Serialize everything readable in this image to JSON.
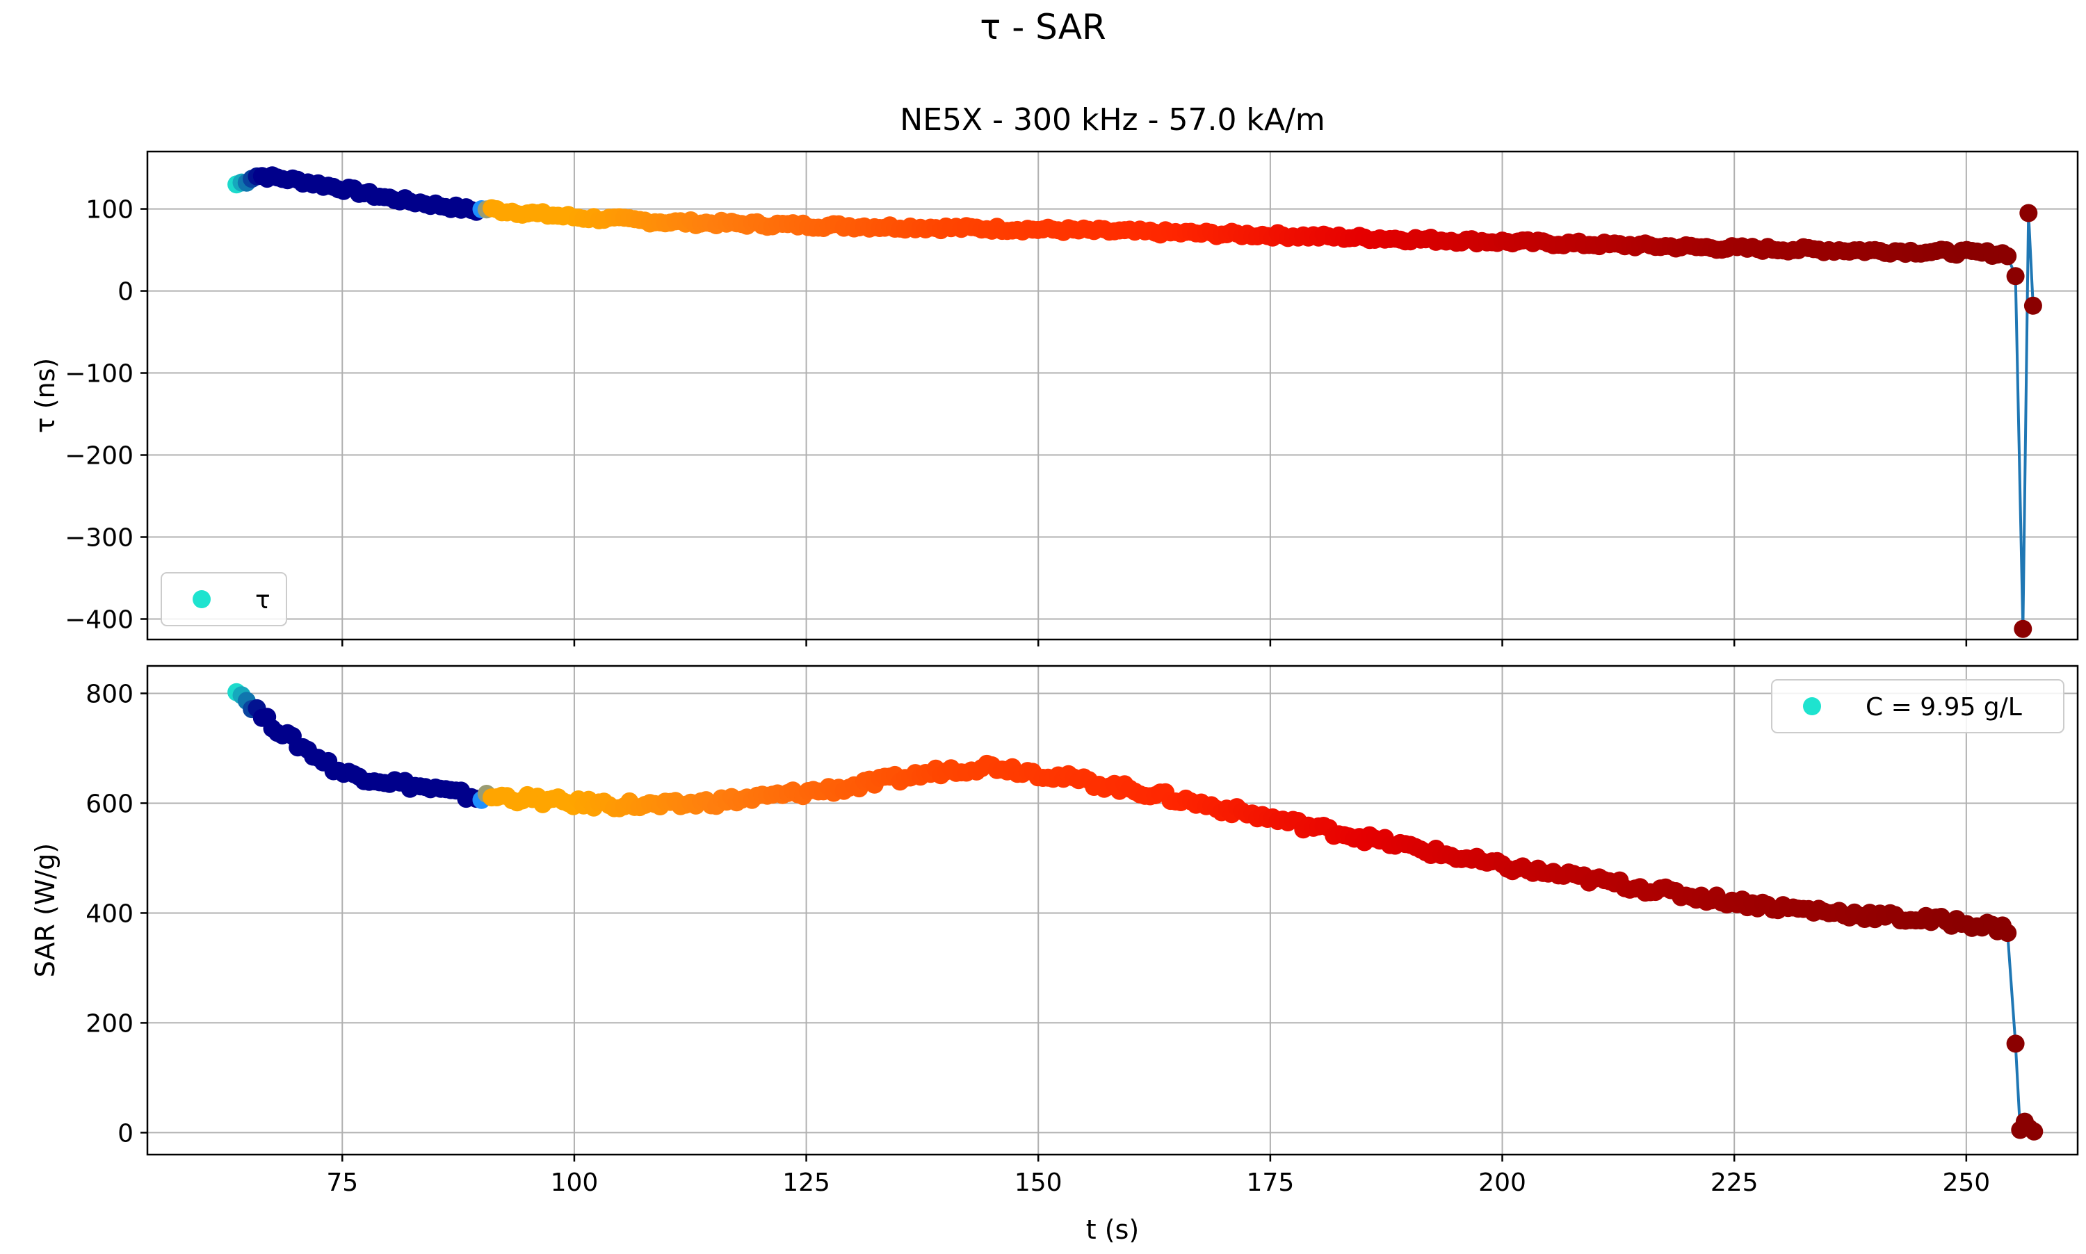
{
  "figure": {
    "suptitle": "τ - SAR",
    "xlabel": "t (s)"
  },
  "chart_data": [
    {
      "type": "scatter",
      "title": "NE5X - 300 kHz - 57.0 kA/m",
      "xlabel": "",
      "ylabel": "τ (ns)",
      "xlim": [
        54,
        262
      ],
      "ylim": [
        -425,
        170
      ],
      "xticks": [
        75,
        100,
        125,
        150,
        175,
        200,
        225,
        250
      ],
      "yticks": [
        -400,
        -300,
        -200,
        -100,
        0,
        100
      ],
      "ytick_labels": [
        "−400",
        "−300",
        "−200",
        "−100",
        "0",
        "100"
      ],
      "grid": true,
      "legend": {
        "label": "τ",
        "placement": "lower-left",
        "marker_color": "#1ee3cf"
      },
      "connecting_line": {
        "color": "#1f77b4",
        "segment": "end"
      },
      "anchors": [
        [
          63.6,
          130
        ],
        [
          64.5,
          133
        ],
        [
          65.5,
          140
        ],
        [
          66.5,
          140
        ],
        [
          70,
          135
        ],
        [
          75,
          125
        ],
        [
          80,
          113
        ],
        [
          85,
          105
        ],
        [
          89.5,
          98
        ],
        [
          90.5,
          100
        ],
        [
          95,
          95
        ],
        [
          100,
          90
        ],
        [
          110,
          84
        ],
        [
          125,
          80
        ],
        [
          150,
          75
        ],
        [
          175,
          68
        ],
        [
          200,
          60
        ],
        [
          225,
          52
        ],
        [
          250,
          47
        ],
        [
          254.5,
          45
        ]
      ],
      "tail_points": [
        [
          255.3,
          18
        ],
        [
          256.1,
          -412
        ],
        [
          256.7,
          95
        ],
        [
          257.2,
          -18
        ]
      ],
      "noise_amp": 3,
      "color_stops": [
        {
          "t": 63.5,
          "color": "#1ee3cf"
        },
        {
          "t": 66,
          "color": "#00008b"
        },
        {
          "t": 89.5,
          "color": "#00008b"
        },
        {
          "t": 90,
          "color": "#1e90ff"
        },
        {
          "t": 91,
          "color": "#ffa500"
        },
        {
          "t": 100,
          "color": "#ffa500"
        },
        {
          "t": 115,
          "color": "#ff7f0e"
        },
        {
          "t": 140,
          "color": "#ff4500"
        },
        {
          "t": 165,
          "color": "#ff2600"
        },
        {
          "t": 185,
          "color": "#e60000"
        },
        {
          "t": 205,
          "color": "#c00000"
        },
        {
          "t": 225,
          "color": "#a00000"
        },
        {
          "t": 250,
          "color": "#8b0000"
        },
        {
          "t": 258,
          "color": "#8b0000"
        }
      ]
    },
    {
      "type": "scatter",
      "title": "",
      "xlabel": "t (s)",
      "ylabel": "SAR (W/g)",
      "xlim": [
        54,
        262
      ],
      "ylim": [
        -40,
        850
      ],
      "xticks": [
        75,
        100,
        125,
        150,
        175,
        200,
        225,
        250
      ],
      "yticks": [
        0,
        200,
        400,
        600,
        800
      ],
      "ytick_labels": [
        "0",
        "200",
        "400",
        "600",
        "800"
      ],
      "grid": true,
      "legend": {
        "label": "C = 9.95 g/L",
        "placement": "upper-right",
        "marker_color": "#1ee3cf"
      },
      "connecting_line": {
        "color": "#1f77b4",
        "segment": "end"
      },
      "anchors": [
        [
          63.6,
          810
        ],
        [
          64.5,
          790
        ],
        [
          65.5,
          775
        ],
        [
          66.5,
          755
        ],
        [
          70,
          710
        ],
        [
          75,
          655
        ],
        [
          80,
          640
        ],
        [
          85,
          625
        ],
        [
          89.5,
          610
        ],
        [
          92,
          612
        ],
        [
          100,
          600
        ],
        [
          110,
          595
        ],
        [
          120,
          610
        ],
        [
          130,
          630
        ],
        [
          140,
          660
        ],
        [
          145,
          668
        ],
        [
          150,
          655
        ],
        [
          160,
          625
        ],
        [
          170,
          590
        ],
        [
          180,
          555
        ],
        [
          190,
          520
        ],
        [
          200,
          485
        ],
        [
          210,
          460
        ],
        [
          220,
          432
        ],
        [
          230,
          410
        ],
        [
          240,
          395
        ],
        [
          250,
          382
        ],
        [
          254.5,
          370
        ]
      ],
      "tail_points": [
        [
          255.3,
          162
        ],
        [
          255.8,
          5
        ],
        [
          256.3,
          20
        ],
        [
          256.8,
          8
        ],
        [
          257.3,
          2
        ]
      ],
      "noise_amp": 8,
      "color_stops": [
        {
          "t": 63.5,
          "color": "#1ee3cf"
        },
        {
          "t": 66,
          "color": "#00008b"
        },
        {
          "t": 89.5,
          "color": "#00008b"
        },
        {
          "t": 90,
          "color": "#1e90ff"
        },
        {
          "t": 91,
          "color": "#ffa500"
        },
        {
          "t": 100,
          "color": "#ffa500"
        },
        {
          "t": 115,
          "color": "#ff7f0e"
        },
        {
          "t": 140,
          "color": "#ff4500"
        },
        {
          "t": 165,
          "color": "#ff2600"
        },
        {
          "t": 185,
          "color": "#e60000"
        },
        {
          "t": 205,
          "color": "#c00000"
        },
        {
          "t": 225,
          "color": "#a00000"
        },
        {
          "t": 250,
          "color": "#8b0000"
        },
        {
          "t": 258,
          "color": "#8b0000"
        }
      ]
    }
  ]
}
